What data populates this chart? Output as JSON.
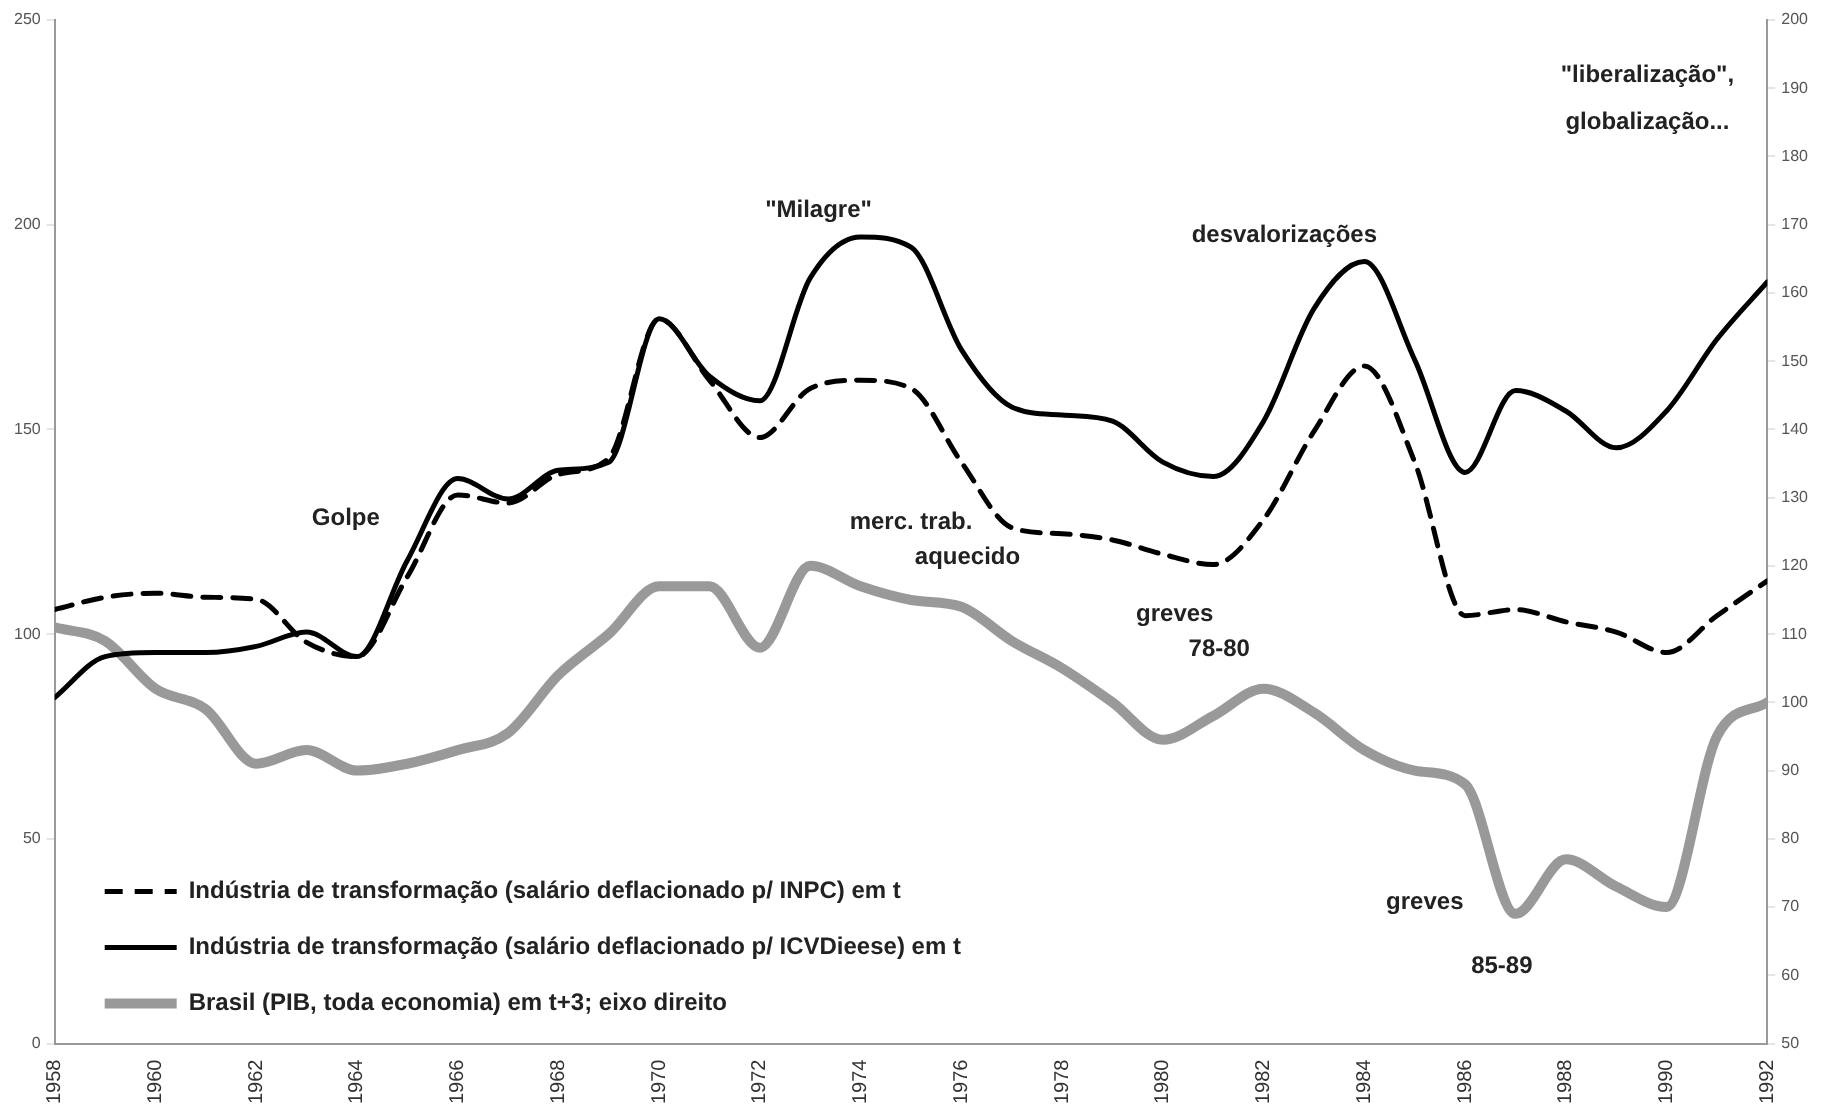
{
  "chart_data": {
    "type": "line",
    "x": [
      1958,
      1959,
      1960,
      1961,
      1962,
      1963,
      1964,
      1965,
      1966,
      1967,
      1968,
      1969,
      1970,
      1971,
      1972,
      1973,
      1974,
      1975,
      1976,
      1977,
      1978,
      1979,
      1980,
      1981,
      1982,
      1983,
      1984,
      1985,
      1986,
      1987,
      1988,
      1989,
      1990,
      1991,
      1992
    ],
    "series": [
      {
        "name": "Indústria de transformação (salário deflacionado p/ INPC) em t",
        "color": "#000000",
        "line_style": "dashed",
        "values": [
          106,
          109,
          110,
          109,
          108.5,
          98,
          94.5,
          114,
          134,
          132,
          139,
          143,
          177,
          162,
          148,
          160,
          162,
          160,
          142,
          126,
          124.5,
          123,
          119.5,
          117,
          128,
          149.5,
          165.5,
          142,
          104.5,
          106,
          103,
          100.5,
          95.5,
          104.5,
          113
        ]
      },
      {
        "name": "Indústria de transformação (salário deflacionado p/ ICVDieese) em t",
        "color": "#000000",
        "line_style": "solid",
        "values": [
          84.5,
          94.5,
          95.5,
          95.5,
          97,
          100.5,
          94.5,
          118,
          138,
          133,
          140,
          142,
          177,
          163,
          157,
          187,
          197,
          194.5,
          169.5,
          155.5,
          153.5,
          152,
          142,
          138.5,
          152,
          179.5,
          191,
          167,
          139.5,
          159.5,
          154.5,
          145.5,
          154.5,
          172,
          186
        ]
      },
      {
        "name": "Brasil (PIB, toda economia) em t+3; eixo direito",
        "color": "#999999",
        "line_style": "solid",
        "axis": "y2",
        "values": [
          111,
          109,
          102,
          99,
          91,
          93,
          90,
          91,
          93,
          95.5,
          104,
          110,
          117,
          117,
          108,
          120,
          117,
          115,
          114,
          109,
          105,
          100,
          94.5,
          98,
          102,
          98.5,
          93,
          90,
          88,
          69,
          77,
          73,
          70,
          95,
          100
        ]
      }
    ],
    "xlim": [
      1958,
      1992
    ],
    "xticks": [
      1958,
      1960,
      1962,
      1964,
      1966,
      1968,
      1970,
      1972,
      1974,
      1976,
      1978,
      1980,
      1982,
      1984,
      1986,
      1988,
      1990,
      1992
    ],
    "ylim": [
      0,
      250
    ],
    "yticks": [
      0,
      50,
      100,
      150,
      200,
      250
    ],
    "y2lim": [
      50,
      200
    ],
    "y2ticks": [
      50,
      60,
      70,
      80,
      90,
      100,
      110,
      120,
      130,
      140,
      150,
      160,
      170,
      180,
      190,
      200
    ],
    "grid": false,
    "legend": "bottom left",
    "marker": "none",
    "annotations": [
      "Golpe",
      "\"Milagre\"",
      "desvalorizações",
      "\"liberalização\",\nglobalização...",
      "merc. trab.\naquecido",
      "greves\n78-80",
      "greves\n85-89"
    ]
  }
}
